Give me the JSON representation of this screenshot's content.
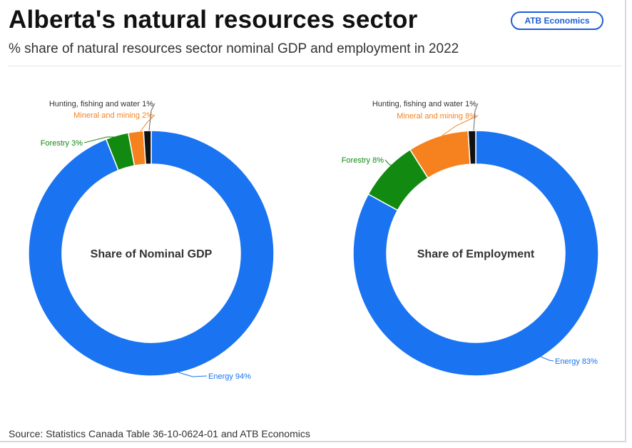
{
  "header": {
    "title": "Alberta's natural resources sector",
    "subtitle": "% share of natural resources sector nominal GDP and employment in 2022",
    "badge": "ATB Economics"
  },
  "footer": {
    "source": "Source: Statistics Canada Table 36-10-0624-01 and ATB Economics"
  },
  "colors": {
    "energy": "#1a73f0",
    "forestry": "#128a12",
    "mineral": "#f5821f",
    "hunting": "#111111"
  },
  "chart_data": [
    {
      "type": "pie",
      "center_label": "Share of Nominal GDP",
      "slices": [
        {
          "label": "Energy 94%",
          "category": "Energy",
          "value": 94,
          "color": "#1a73f0"
        },
        {
          "label": "Forestry 3%",
          "category": "Forestry",
          "value": 3,
          "color": "#128a12"
        },
        {
          "label": "Mineral and mining 2%",
          "category": "Mineral and mining",
          "value": 2,
          "color": "#f5821f"
        },
        {
          "label": "Hunting, fishing and water 1%",
          "category": "Hunting, fishing and water",
          "value": 1,
          "color": "#111111"
        }
      ]
    },
    {
      "type": "pie",
      "center_label": "Share of Employment",
      "slices": [
        {
          "label": "Energy 83%",
          "category": "Energy",
          "value": 83,
          "color": "#1a73f0"
        },
        {
          "label": "Forestry 8%",
          "category": "Forestry",
          "value": 8,
          "color": "#128a12"
        },
        {
          "label": "Mineral and mining 8%",
          "category": "Mineral and mining",
          "value": 8,
          "color": "#f5821f"
        },
        {
          "label": "Hunting, fishing and water 1%",
          "category": "Hunting, fishing and water",
          "value": 1,
          "color": "#111111"
        }
      ]
    }
  ]
}
